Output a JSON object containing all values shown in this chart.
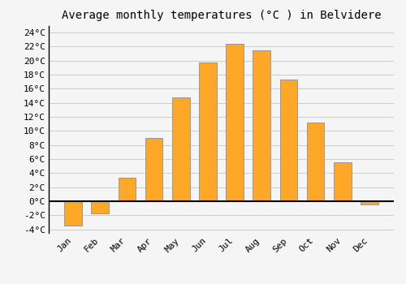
{
  "title": "Average monthly temperatures (°C ) in Belvidere",
  "months": [
    "Jan",
    "Feb",
    "Mar",
    "Apr",
    "May",
    "Jun",
    "Jul",
    "Aug",
    "Sep",
    "Oct",
    "Nov",
    "Dec"
  ],
  "values": [
    -3.5,
    -1.7,
    3.4,
    9.0,
    14.8,
    19.7,
    22.4,
    21.5,
    17.3,
    11.2,
    5.5,
    -0.5
  ],
  "bar_color": "#FFA726",
  "bar_edge_color": "#999999",
  "background_color": "#F5F5F5",
  "grid_color": "#CCCCCC",
  "ylim": [
    -4.5,
    25
  ],
  "yticks": [
    -4,
    -2,
    0,
    2,
    4,
    6,
    8,
    10,
    12,
    14,
    16,
    18,
    20,
    22,
    24
  ],
  "title_fontsize": 10,
  "tick_fontsize": 8,
  "zero_line_color": "#000000",
  "bar_width": 0.65
}
